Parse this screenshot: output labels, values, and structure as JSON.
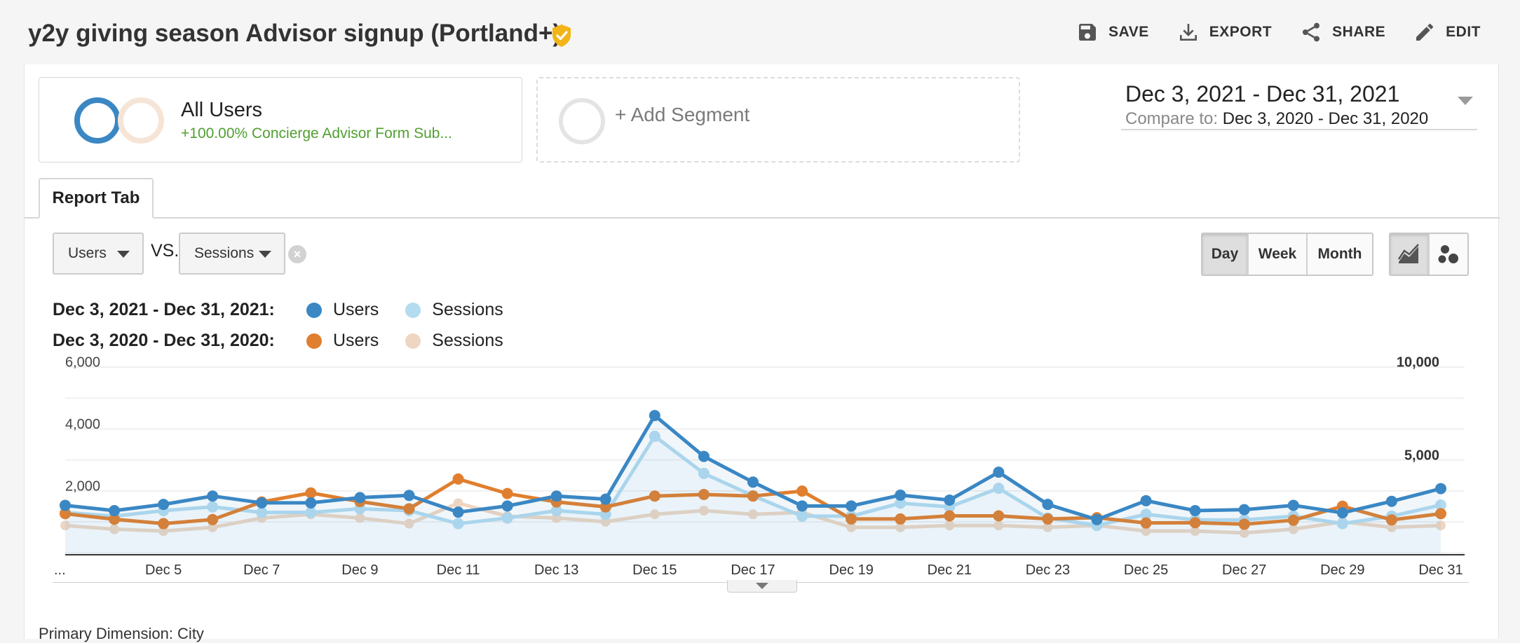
{
  "header": {
    "title": "y2y giving season Advisor signup (Portland+)",
    "actions": {
      "save": "SAVE",
      "export": "EXPORT",
      "share": "SHARE",
      "edit": "EDIT"
    }
  },
  "segments": {
    "all_users": {
      "title": "All Users",
      "subtitle": "+100.00% Concierge Advisor Form Sub..."
    },
    "add_segment": "+ Add Segment"
  },
  "date_range": {
    "current": "Dec 3, 2021 - Dec 31, 2021",
    "compare_label": "Compare to:",
    "compare": "Dec 3, 2020 - Dec 31, 2020"
  },
  "tabs": [
    "Report Tab"
  ],
  "controls": {
    "metric1": "Users",
    "vs": "VS.",
    "metric2": "Sessions",
    "granularity": [
      "Day",
      "Week",
      "Month"
    ],
    "active_granularity": "Day"
  },
  "legend": {
    "row1_range": "Dec 3, 2021 - Dec 31, 2021:",
    "row2_range": "Dec 3, 2020 - Dec 31, 2020:",
    "series": [
      "Users",
      "Sessions"
    ]
  },
  "colors": {
    "users_2021": "#3a87c4",
    "sessions_2021": "#b3dcf0",
    "users_2020": "#e07f2f",
    "sessions_2020": "#efd6c2"
  },
  "chart_data": {
    "type": "line",
    "x_labels": [
      "...",
      "Dec 5",
      "Dec 7",
      "Dec 9",
      "Dec 11",
      "Dec 13",
      "Dec 15",
      "Dec 17",
      "Dec 19",
      "Dec 21",
      "Dec 23",
      "Dec 25",
      "Dec 27",
      "Dec 29",
      "Dec 31"
    ],
    "y_left_ticks": [
      "6,000",
      "4,000",
      "2,000"
    ],
    "y_right_ticks": [
      "10,000",
      "5,000"
    ],
    "ylim_left": [
      0,
      6000
    ],
    "ylim_right": [
      0,
      10000
    ],
    "grid": true,
    "x": [
      "Dec 3",
      "Dec 4",
      "Dec 5",
      "Dec 6",
      "Dec 7",
      "Dec 8",
      "Dec 9",
      "Dec 10",
      "Dec 11",
      "Dec 12",
      "Dec 13",
      "Dec 14",
      "Dec 15",
      "Dec 16",
      "Dec 17",
      "Dec 18",
      "Dec 19",
      "Dec 20",
      "Dec 21",
      "Dec 22",
      "Dec 23",
      "Dec 24",
      "Dec 25",
      "Dec 26",
      "Dec 27",
      "Dec 28",
      "Dec 29",
      "Dec 30",
      "Dec 31"
    ],
    "series": [
      {
        "name": "Users",
        "period": "2021",
        "axis": "left",
        "values": [
          1550,
          1380,
          1580,
          1850,
          1630,
          1630,
          1800,
          1870,
          1330,
          1530,
          1850,
          1750,
          4450,
          3130,
          2300,
          1530,
          1530,
          1880,
          1720,
          2620,
          1580,
          1090,
          1700,
          1380,
          1410,
          1550,
          1310,
          1680,
          2090
        ]
      },
      {
        "name": "Sessions",
        "period": "2021",
        "axis": "right",
        "values": [
          2200,
          2000,
          2300,
          2500,
          2200,
          2200,
          2400,
          2300,
          1600,
          1900,
          2300,
          2100,
          6300,
          4300,
          3100,
          2000,
          2000,
          2700,
          2500,
          3500,
          1900,
          1500,
          2100,
          1800,
          1800,
          2000,
          1600,
          2000,
          2600
        ]
      },
      {
        "name": "Users",
        "period": "2020",
        "axis": "left",
        "values": [
          1280,
          1100,
          960,
          1090,
          1660,
          1950,
          1670,
          1440,
          2400,
          1930,
          1660,
          1500,
          1850,
          1900,
          1850,
          2010,
          1110,
          1110,
          1210,
          1210,
          1110,
          1150,
          980,
          990,
          940,
          1070,
          1520,
          1080,
          1280
        ]
      },
      {
        "name": "Sessions",
        "period": "2020",
        "axis": "right",
        "values": [
          1500,
          1300,
          1200,
          1400,
          1900,
          2100,
          1900,
          1600,
          2700,
          2000,
          1900,
          1700,
          2100,
          2300,
          2100,
          2200,
          1400,
          1400,
          1500,
          1500,
          1400,
          1500,
          1200,
          1200,
          1100,
          1300,
          1700,
          1400,
          1500
        ]
      }
    ]
  }
}
